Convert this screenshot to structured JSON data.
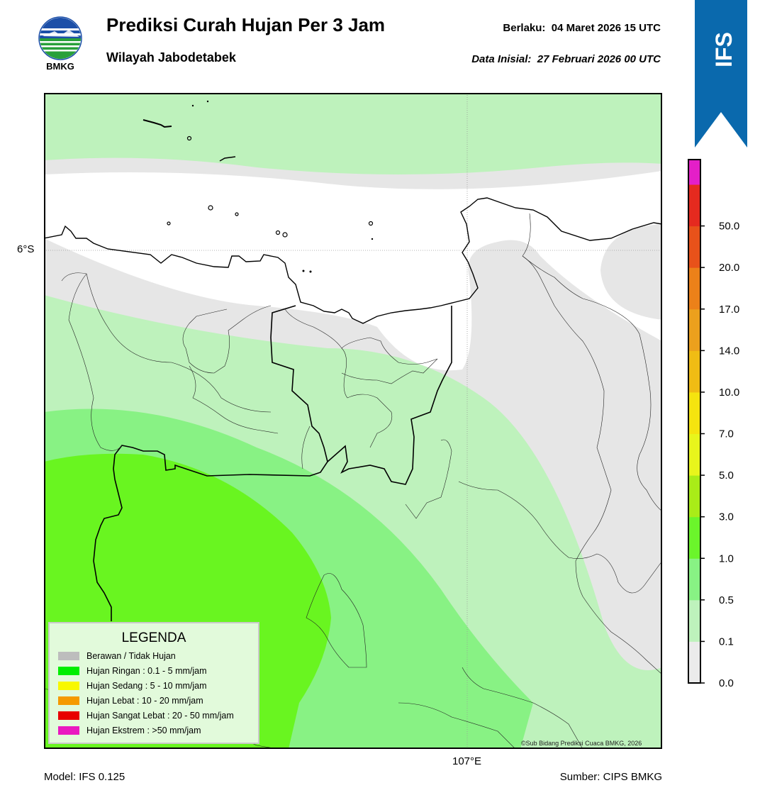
{
  "header": {
    "title": "Prediksi Curah Hujan Per 3 Jam",
    "subtitle": "Wilayah Jabodetabek",
    "valid": "Berlaku:  04 Maret 2026 15 UTC",
    "initial": "Data Inisial:  27 Februari 2026 00 UTC",
    "logo_text": "BMKG",
    "logo_icon": "bmkg-logo-icon",
    "banner_text": "IFS",
    "banner_color": "#0a69ad"
  },
  "map": {
    "lat_label": "6°S",
    "lon_label": "107°E",
    "credit": "©Sub Bidang Prediksi Cuaca BMKG, 2026"
  },
  "footer": {
    "model": "Model: IFS 0.125",
    "source": "Sumber: CIPS BMKG"
  },
  "legend": {
    "title": "LEGENDA",
    "items": [
      {
        "label": "Berawan / Tidak Hujan",
        "color": "#bdbdbd"
      },
      {
        "label": "Hujan Ringan : 0.1 - 5 mm/jam",
        "color": "#00ee00"
      },
      {
        "label": "Hujan Sedang : 5 - 10 mm/jam",
        "color": "#f8f800"
      },
      {
        "label": "Hujan Lebat : 10 - 20 mm/jam",
        "color": "#f59a00"
      },
      {
        "label": "Hujan Sangat Lebat : 20 - 50 mm/jam",
        "color": "#e80000"
      },
      {
        "label": "Hujan Ekstrem : >50 mm/jam",
        "color": "#ea18c0"
      }
    ]
  },
  "colorbar": {
    "ticks": [
      "0.0",
      "0.1",
      "0.5",
      "1.0",
      "3.0",
      "5.0",
      "7.0",
      "10.0",
      "14.0",
      "17.0",
      "20.0",
      "50.0"
    ],
    "colors": [
      "#ebebeb",
      "#bef2bc",
      "#88f284",
      "#6bf52b",
      "#a9ec18",
      "#e8f51c",
      "#f5e40f",
      "#f0bc14",
      "#eca01d",
      "#ec8119",
      "#e8521a",
      "#e52a1f",
      "#e41fc8"
    ]
  }
}
